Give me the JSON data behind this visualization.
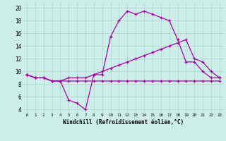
{
  "xlabel": "Windchill (Refroidissement éolien,°C)",
  "background_color": "#cceee8",
  "line_color": "#aa00aa",
  "hours": [
    0,
    1,
    2,
    3,
    4,
    5,
    6,
    7,
    8,
    9,
    10,
    11,
    12,
    13,
    14,
    15,
    16,
    17,
    18,
    19,
    20,
    21,
    22,
    23
  ],
  "temp": [
    9.5,
    9.0,
    9.0,
    8.5,
    8.5,
    8.5,
    8.5,
    8.5,
    8.5,
    8.5,
    8.5,
    8.5,
    8.5,
    8.5,
    8.5,
    8.5,
    8.5,
    8.5,
    8.5,
    8.5,
    8.5,
    8.5,
    8.5,
    8.5
  ],
  "windchill": [
    9.5,
    9.0,
    9.0,
    8.5,
    8.5,
    5.5,
    5.0,
    4.0,
    9.5,
    9.5,
    15.5,
    18.0,
    19.5,
    19.0,
    19.5,
    19.0,
    18.5,
    18.0,
    15.0,
    11.5,
    11.5,
    10.0,
    9.0,
    9.0
  ],
  "feels_like": [
    9.5,
    9.0,
    9.0,
    8.5,
    8.5,
    9.0,
    9.0,
    9.0,
    9.5,
    10.0,
    10.5,
    11.0,
    11.5,
    12.0,
    12.5,
    13.0,
    13.5,
    14.0,
    14.5,
    15.0,
    12.0,
    11.5,
    10.0,
    9.0
  ],
  "yticks": [
    4,
    6,
    8,
    10,
    12,
    14,
    16,
    18,
    20
  ],
  "grid_color": "#99ccbb",
  "grid_alpha": 0.7
}
